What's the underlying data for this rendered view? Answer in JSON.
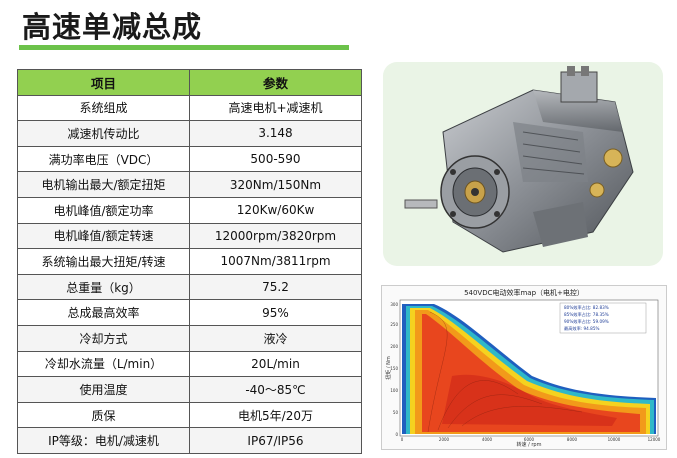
{
  "page": {
    "title": "高速单减总成"
  },
  "table": {
    "headers": [
      "项目",
      "参数"
    ],
    "rows": [
      [
        "系统组成",
        "高速电机+减速机"
      ],
      [
        "减速机传动比",
        "3.148"
      ],
      [
        "满功率电压（VDC）",
        "500-590"
      ],
      [
        "电机输出最大/额定扭矩",
        "320Nm/150Nm"
      ],
      [
        "电机峰值/额定功率",
        "120Kw/60Kw"
      ],
      [
        "电机峰值/额定转速",
        "12000rpm/3820rpm"
      ],
      [
        "系统输出最大扭矩/转速",
        "1007Nm/3811rpm"
      ],
      [
        "总重量（kg）",
        "75.2"
      ],
      [
        "总成最高效率",
        "95%"
      ],
      [
        "冷却方式",
        "液冷"
      ],
      [
        "冷却水流量（L/min）",
        "20L/min"
      ],
      [
        "使用温度",
        "-40～85℃"
      ],
      [
        "质保",
        "电机5年/20万"
      ],
      [
        "IP等级：电机/减速机",
        "IP67/IP56"
      ]
    ]
  },
  "efficiency_map": {
    "title": "540VDC电动效率map（电机+电控）",
    "xlabel": "转速 / rpm",
    "ylabel": "扭矩 / Nm",
    "x_ticks": [
      "0",
      "2000",
      "4000",
      "6000",
      "8000",
      "10000",
      "12000"
    ],
    "y_ticks": [
      "0",
      "50",
      "100",
      "150",
      "200",
      "250",
      "300"
    ],
    "legend": [
      "80%效率占比: 82.83%",
      "85%效率占比: 78.35%",
      "90%效率占比: 59.09%",
      "最高效率: 94.85%"
    ]
  }
}
